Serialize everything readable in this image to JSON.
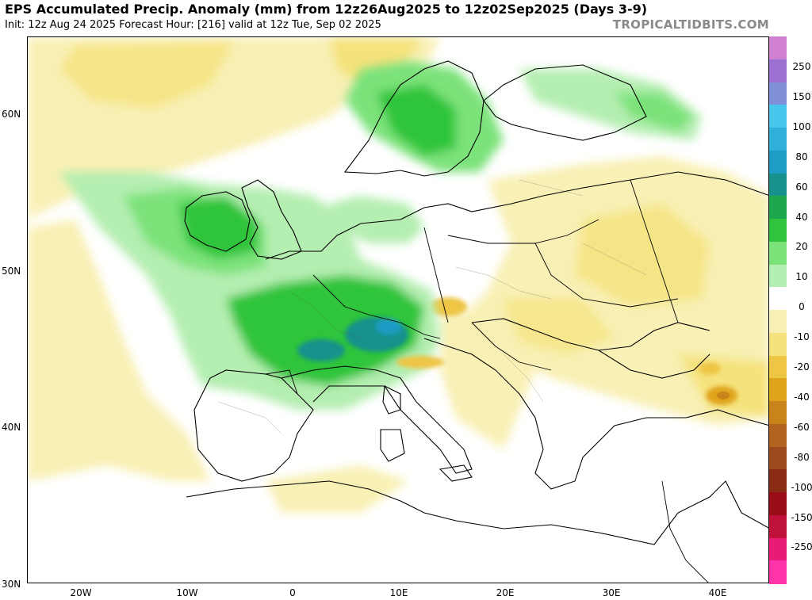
{
  "header": {
    "title": "EPS Accumulated Precip. Anomaly (mm) from 12z26Aug2025 to 12z02Sep2025 (Days 3-9)",
    "subtitle": "Init: 12z Aug 24 2025   Forecast Hour: [216]   valid at 12z Tue, Sep 02 2025",
    "brand": "TROPICALTIDBITS.COM"
  },
  "axes": {
    "lat_labels": [
      "60N",
      "50N",
      "40N",
      "30N"
    ],
    "lon_labels": [
      "20W",
      "10W",
      "0",
      "10E",
      "20E",
      "30E",
      "40E"
    ]
  },
  "colorbar": {
    "levels": [
      "250",
      "150",
      "100",
      "80",
      "60",
      "40",
      "20",
      "10",
      "0",
      "-10",
      "-20",
      "-40",
      "-60",
      "-80",
      "-100",
      "-150",
      "-250"
    ],
    "colors": [
      "#d080d0",
      "#9c70d0",
      "#7f8fd8",
      "#46c6ea",
      "#2fb0d8",
      "#1d9cc4",
      "#16918c",
      "#1ea74c",
      "#2fc43b",
      "#7be27a",
      "#b4eeb0",
      "#ffffff",
      "#f8f0b4",
      "#f5e27c",
      "#eec544",
      "#e0a41c",
      "#c8841a",
      "#b06420",
      "#9a4a1c",
      "#8a2c14",
      "#9a0c16",
      "#c0103c",
      "#e81c76",
      "#ff33aa"
    ]
  },
  "map": {
    "regions": [
      {
        "name": "north-atlantic-dry",
        "level": "-10"
      },
      {
        "name": "british-isles-wet",
        "level": "20"
      },
      {
        "name": "norway-wet",
        "level": "20"
      },
      {
        "name": "france-alps-wet",
        "level": "40"
      },
      {
        "name": "eastern-europe-dry",
        "level": "-10"
      },
      {
        "name": "caucasus-dry",
        "level": "-40"
      }
    ]
  }
}
